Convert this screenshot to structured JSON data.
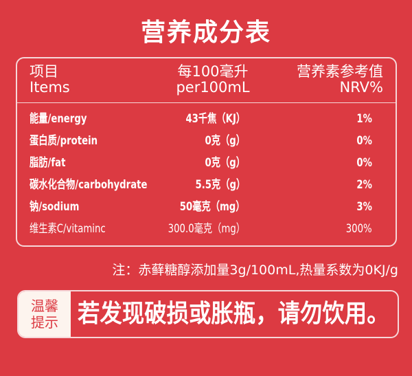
{
  "title": "营养成分表",
  "table": {
    "headers": [
      {
        "zh": "项目",
        "en": "Items"
      },
      {
        "zh": "每100毫升",
        "en": "per100mL"
      },
      {
        "zh": "营养素参考值",
        "en": "NRV%"
      }
    ],
    "rows": [
      {
        "item": "能量/energy",
        "value": "43千焦（KJ）",
        "nrv": "1%"
      },
      {
        "item": "蛋白质/protein",
        "value": "0克（g）",
        "nrv": "0%"
      },
      {
        "item": "脂肪/fat",
        "value": "0克（g）",
        "nrv": "0%"
      },
      {
        "item": "碳水化合物/carbohydrate",
        "value": "5.5克（g）",
        "nrv": "2%"
      },
      {
        "item": "钠/sodium",
        "value": "50毫克（mg）",
        "nrv": "3%"
      },
      {
        "item": "维生素C/vitaminc",
        "value": "300.0毫克（mg）",
        "nrv": "300%"
      }
    ]
  },
  "note": "注：赤藓糖醇添加量3g/100mL,热量系数为0KJ/g",
  "warning": {
    "tag_line1": "温馨",
    "tag_line2": "提示",
    "message": "若发现破损或胀瓶，请勿饮用。"
  },
  "colors": {
    "background": "#dc3a42",
    "tag_background": "#fdf4ee"
  }
}
